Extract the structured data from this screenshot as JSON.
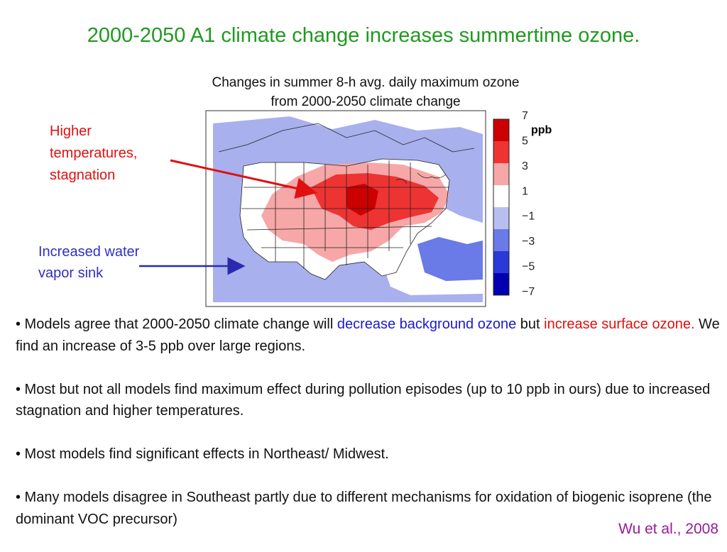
{
  "slide": {
    "title": "2000-2050 A1 climate change increases summertime ozone.",
    "map_caption_line1": "Changes in summer 8-h avg. daily maximum ozone",
    "map_caption_line2": "from 2000-2050 climate change",
    "callout_red": [
      "Higher",
      "temperatures,",
      "stagnation"
    ],
    "callout_blue": [
      "Increased water",
      "vapor sink"
    ],
    "colorbar": {
      "unit": "ppb",
      "tick_labels": [
        "7",
        "5",
        "3",
        "1",
        "−1",
        "−3",
        "−5",
        "−7"
      ],
      "colors": [
        "#cc0000",
        "#ee3333",
        "#f7a7a7",
        "#ffffff",
        "#b8bff0",
        "#6a7ae6",
        "#2a3ad8",
        "#0000b0"
      ]
    },
    "bullets": {
      "b1_pre": "•  Models agree that 2000-2050 climate change will ",
      "b1_blue": "decrease background ozone",
      "b1_mid": " but ",
      "b1_red": "increase surface ozone.",
      "b1_post": " We find an increase of 3-5 ppb over large regions.",
      "b2": "• Most but not all models find maximum effect during pollution episodes (up to 10 ppb in ours) due to increased stagnation and higher temperatures.",
      "b3": "• Most models find significant effects in Northeast/ Midwest.",
      "b4": "• Many models disagree in Southeast partly due to different mechanisms for oxidation of biogenic isoprene (the dominant VOC precursor)"
    },
    "citation": "Wu et al., 2008",
    "colors": {
      "title": "#1f9a1f",
      "red_text": "#e01010",
      "blue_text": "#3030c0",
      "citation": "#9a1a9a"
    }
  }
}
